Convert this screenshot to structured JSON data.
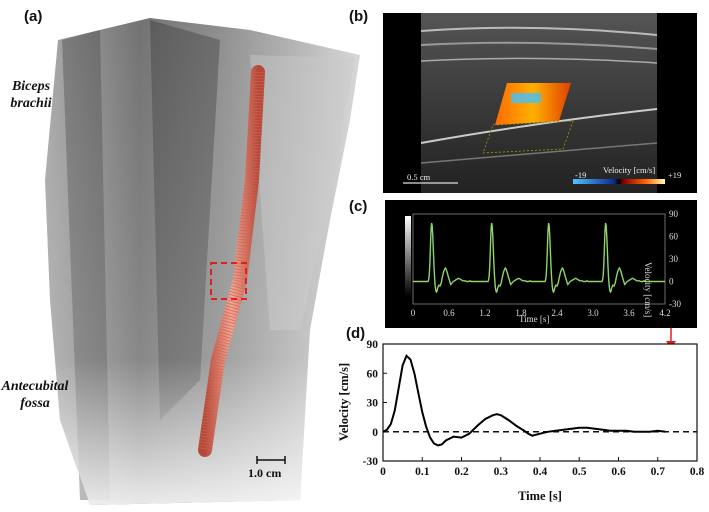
{
  "panels": {
    "a": {
      "label": "(a)",
      "region_top": [
        "Biceps",
        "brachii"
      ],
      "region_bottom": [
        "Antecubital",
        "fossa"
      ],
      "scale_bar": "1.0 cm"
    },
    "b": {
      "label": "(b)",
      "scale_bar": "0.5 cm",
      "colorbar_title": "Velocity [cm/s]",
      "colorbar_min": "-19",
      "colorbar_max": "+19"
    },
    "c": {
      "label": "(c)",
      "x_ticks": [
        "0",
        "0.6",
        "1.2",
        "1.8",
        "2.4",
        "3.0",
        "3.6",
        "4.2"
      ],
      "y_ticks": [
        "90",
        "60",
        "30",
        "0",
        "-30"
      ],
      "xlabel": "Time [s]",
      "ylabel": "Velocity [cm/s]"
    },
    "d": {
      "label": "(d)"
    }
  },
  "chart_data": {
    "type": "line",
    "xlabel": "Time [s]",
    "ylabel": "Velocity [cm/s]",
    "xlim": [
      0,
      0.8
    ],
    "ylim": [
      -30,
      90
    ],
    "x_ticks": [
      "0",
      "0.1",
      "0.2",
      "0.3",
      "0.4",
      "0.5",
      "0.6",
      "0.7",
      "0.8"
    ],
    "y_ticks": [
      "90",
      "60",
      "30",
      "0",
      "-30"
    ],
    "reference_line_y": 0,
    "x": [
      0,
      0.01,
      0.02,
      0.03,
      0.04,
      0.05,
      0.06,
      0.07,
      0.08,
      0.09,
      0.1,
      0.11,
      0.12,
      0.13,
      0.14,
      0.15,
      0.16,
      0.18,
      0.2,
      0.22,
      0.24,
      0.26,
      0.28,
      0.29,
      0.3,
      0.32,
      0.34,
      0.36,
      0.37,
      0.38,
      0.4,
      0.42,
      0.44,
      0.46,
      0.48,
      0.5,
      0.52,
      0.54,
      0.56,
      0.58,
      0.6,
      0.62,
      0.64,
      0.66,
      0.68,
      0.7,
      0.72
    ],
    "y": [
      0,
      2,
      8,
      22,
      45,
      68,
      78,
      74,
      60,
      40,
      20,
      5,
      -6,
      -12,
      -14,
      -13,
      -9,
      -5,
      -6,
      -2,
      6,
      13,
      17,
      18,
      17,
      12,
      6,
      1,
      -2,
      -4,
      -2,
      0,
      1,
      2,
      3,
      4,
      4,
      3,
      2,
      1,
      1,
      1,
      0,
      0,
      0,
      1,
      0
    ],
    "line_color": "#000000"
  }
}
